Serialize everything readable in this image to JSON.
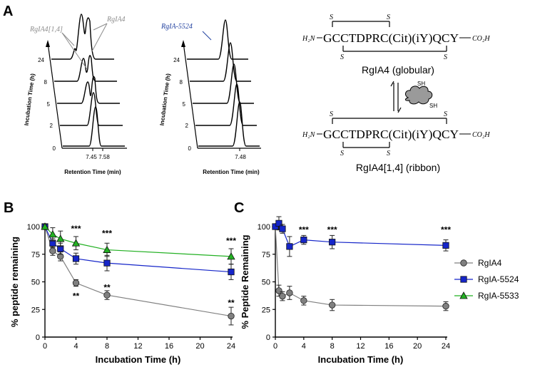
{
  "panel_a": {
    "label": "A",
    "chrom1": {
      "annot_left": "RgIA4[1,4]",
      "annot_right": "RgIA4",
      "ylabel": "Incubation Time (h)",
      "xlabel": "Retention Time (min)",
      "yticks": [
        "0",
        "2",
        "5",
        "8",
        "24"
      ],
      "xticks": [
        "7.45",
        "7.58"
      ]
    },
    "chrom2": {
      "annot": "RgIA-5524",
      "ylabel": "Incubation Time (h)",
      "xlabel": "Retention Time (min)",
      "yticks": [
        "0",
        "2",
        "5",
        "8",
        "24"
      ],
      "xticks": [
        "7.48"
      ]
    },
    "structure": {
      "top_sequence": "GCCTDPRC(Cit)(iY)QCY",
      "n_term": "H₂N",
      "c_term": "CO₂H",
      "s": "S",
      "top_name": "RgIA4 (globular)",
      "bottom_sequence": "GCCTDPRC(Cit)(iY)QCY",
      "bottom_name": "RgIA4[1,4] (ribbon)",
      "sh": "SH",
      "colors": {
        "annot_gray": "#8c8c8c",
        "annot_blue": "#1f3f9e"
      }
    }
  },
  "chart_data": [
    {
      "type": "line",
      "panel_label": "B",
      "title": "",
      "xlabel": "Incubation Time (h)",
      "ylabel": "% peptide remaining",
      "xlim": [
        0,
        24
      ],
      "ylim": [
        0,
        100
      ],
      "xticks": [
        0,
        4,
        8,
        12,
        16,
        20,
        24
      ],
      "yticks": [
        0,
        25,
        50,
        75,
        100
      ],
      "series": [
        {
          "name": "RgIA4",
          "color": "#808080",
          "marker": "circle",
          "x": [
            0,
            1,
            2,
            4,
            8,
            24
          ],
          "y": [
            100,
            78,
            73,
            49,
            38,
            19
          ],
          "err": [
            2,
            4,
            4,
            3,
            4,
            8
          ]
        },
        {
          "name": "RgIA-5524",
          "color": "#1525c9",
          "marker": "square",
          "x": [
            0,
            1,
            2,
            4,
            8,
            24
          ],
          "y": [
            100,
            85,
            80,
            71,
            67,
            59
          ],
          "err": [
            2,
            4,
            5,
            5,
            7,
            7
          ]
        },
        {
          "name": "RgIA-5533",
          "color": "#22b022",
          "marker": "triangle",
          "x": [
            0,
            1,
            2,
            4,
            8,
            24
          ],
          "y": [
            100,
            93,
            89,
            85,
            79,
            73
          ],
          "err": [
            2,
            6,
            7,
            6,
            6,
            7
          ]
        }
      ],
      "annotations": [
        {
          "x": 4,
          "y": 98,
          "text": "***"
        },
        {
          "x": 8,
          "y": 94,
          "text": "***"
        },
        {
          "x": 24,
          "y": 87,
          "text": "***"
        },
        {
          "x": 4,
          "y": 37,
          "text": "**"
        },
        {
          "x": 8,
          "y": 45,
          "text": "**"
        },
        {
          "x": 24,
          "y": 31,
          "text": "**"
        }
      ]
    },
    {
      "type": "line",
      "panel_label": "C",
      "title": "",
      "xlabel": "Incubation Time (h)",
      "ylabel": "% Peptide Remaining",
      "xlim": [
        0,
        24
      ],
      "ylim": [
        0,
        100
      ],
      "xticks": [
        0,
        4,
        8,
        12,
        16,
        20,
        24
      ],
      "yticks": [
        0,
        25,
        50,
        75,
        100
      ],
      "legend_position": "right",
      "series": [
        {
          "name": "RgIA4",
          "color": "#808080",
          "marker": "circle",
          "x": [
            0,
            0.5,
            1,
            2,
            4,
            8,
            24
          ],
          "y": [
            100,
            42,
            37,
            40,
            33,
            29,
            28
          ],
          "err": [
            2,
            5,
            4,
            6,
            4,
            5,
            4
          ]
        },
        {
          "name": "RgIA-5524",
          "color": "#1525c9",
          "marker": "square",
          "x": [
            0,
            0.5,
            1,
            2,
            4,
            8,
            24
          ],
          "y": [
            100,
            103,
            98,
            82,
            88,
            86,
            83
          ],
          "err": [
            2,
            6,
            4,
            9,
            4,
            6,
            5
          ]
        }
      ],
      "annotations": [
        {
          "x": 4,
          "y": 97,
          "text": "***"
        },
        {
          "x": 8,
          "y": 97,
          "text": "***"
        },
        {
          "x": 24,
          "y": 97,
          "text": "***"
        }
      ],
      "legend": [
        {
          "name": "RgIA4",
          "color": "#808080",
          "marker": "circle"
        },
        {
          "name": "RgIA-5524",
          "color": "#1525c9",
          "marker": "square"
        },
        {
          "name": "RgIA-5533",
          "color": "#22b022",
          "marker": "triangle"
        }
      ]
    }
  ]
}
